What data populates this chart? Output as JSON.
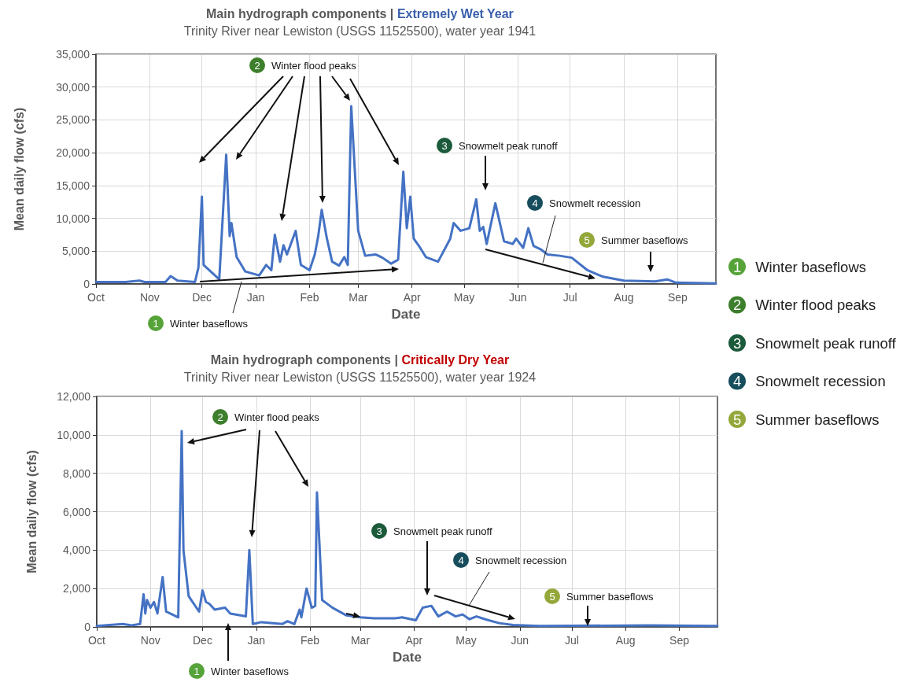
{
  "chart_data": [
    {
      "type": "line",
      "title": "Main hydrograph components | Extremely Wet Year",
      "subtitle": "Trinity River near Lewiston (USGS 11525500), water year 1941",
      "xlabel": "Date",
      "ylabel": "Mean daily flow (cfs)",
      "x": [
        "1940-10-01",
        "1940-10-18",
        "1940-10-26",
        "1940-10-29",
        "1940-11-10",
        "1940-11-13",
        "1940-11-17",
        "1940-11-27",
        "1940-11-29",
        "1940-12-01",
        "1940-12-02",
        "1940-12-11",
        "1940-12-15",
        "1940-12-17",
        "1940-12-18",
        "1940-12-21",
        "1940-12-26",
        "1941-01-03",
        "1941-01-07",
        "1941-01-10",
        "1941-01-12",
        "1941-01-15",
        "1941-01-17",
        "1941-01-19",
        "1941-01-24",
        "1941-01-27",
        "1941-02-01",
        "1941-02-04",
        "1941-02-06",
        "1941-02-08",
        "1941-02-11",
        "1941-02-14",
        "1941-02-18",
        "1941-02-21",
        "1941-02-23",
        "1941-02-25",
        "1941-03-01",
        "1941-03-05",
        "1941-03-11",
        "1941-03-15",
        "1941-03-20",
        "1941-03-24",
        "1941-03-27",
        "1941-03-29",
        "1941-03-31",
        "1941-04-02",
        "1941-04-05",
        "1941-04-09",
        "1941-04-16",
        "1941-04-23",
        "1941-04-25",
        "1941-04-29",
        "1941-05-04",
        "1941-05-08",
        "1941-05-10",
        "1941-05-12",
        "1941-05-14",
        "1941-05-19",
        "1941-05-24",
        "1941-05-29",
        "1941-05-31",
        "1941-06-04",
        "1941-06-07",
        "1941-06-10",
        "1941-06-14",
        "1941-06-18",
        "1941-06-25",
        "1941-07-02",
        "1941-07-11",
        "1941-07-20",
        "1941-08-01",
        "1941-08-19",
        "1941-08-26",
        "1941-08-31",
        "1941-09-23"
      ],
      "values": [
        300,
        300,
        500,
        300,
        300,
        1200,
        500,
        300,
        2500,
        13300,
        2900,
        700,
        19700,
        7300,
        9300,
        4100,
        1900,
        1300,
        2900,
        2100,
        7500,
        3400,
        5900,
        4500,
        8100,
        2900,
        2100,
        4500,
        7300,
        11300,
        6900,
        3400,
        2800,
        4100,
        2900,
        27100,
        8100,
        4300,
        4500,
        4000,
        3100,
        3700,
        17100,
        8500,
        13300,
        6900,
        5800,
        4100,
        3400,
        6900,
        9300,
        8100,
        8500,
        12900,
        8100,
        8700,
        6100,
        12300,
        6500,
        6100,
        6900,
        5500,
        8500,
        5800,
        5300,
        4500,
        4300,
        4000,
        2100,
        1100,
        500,
        400,
        700,
        200,
        100
      ],
      "color": "#4472c4",
      "xlim": [
        "1940-10-01",
        "1941-09-23"
      ],
      "xticks": [
        {
          "value": "1940-10-01",
          "label": "Oct"
        },
        {
          "value": "1940-11-01",
          "label": "Nov"
        },
        {
          "value": "1940-12-01",
          "label": "Dec"
        },
        {
          "value": "1941-01-01",
          "label": "Jan"
        },
        {
          "value": "1941-02-01",
          "label": "Feb"
        },
        {
          "value": "1941-03-01",
          "label": "Mar"
        },
        {
          "value": "1941-04-01",
          "label": "Apr"
        },
        {
          "value": "1941-05-01",
          "label": "May"
        },
        {
          "value": "1941-06-01",
          "label": "Jun"
        },
        {
          "value": "1941-07-01",
          "label": "Jul"
        },
        {
          "value": "1941-08-01",
          "label": "Aug"
        },
        {
          "value": "1941-09-01",
          "label": "Sep"
        }
      ],
      "ylim": [
        0,
        35000
      ],
      "yticks": [
        0,
        {
          "value": 5000,
          "label": "5,000"
        },
        {
          "value": 10000,
          "label": "10,000"
        },
        {
          "value": 15000,
          "label": "15,000"
        },
        {
          "value": 20000,
          "label": "20,000"
        },
        {
          "value": 25000,
          "label": "25,000"
        },
        {
          "value": 30000,
          "label": "30,000"
        },
        {
          "value": 35000,
          "label": "35,000"
        }
      ],
      "grid": true,
      "marker": "none",
      "line_style": "solid",
      "annotations": [
        "1",
        "Winter baseflows",
        "2",
        "Winter flood peaks",
        "3",
        "Snowmelt peak runoff",
        "4",
        "Snowmelt recession",
        "5",
        "Summer baseflows"
      ]
    },
    {
      "type": "line",
      "title": "Main hydrograph components | Critically Dry Year",
      "subtitle": "Trinity River near Lewiston (USGS 11525500), water year 1924",
      "xlabel": "Date",
      "ylabel": "Mean daily flow (cfs)",
      "x": [
        "1923-10-01",
        "1923-10-16",
        "1923-10-21",
        "1923-10-26",
        "1923-10-28",
        "1923-10-29",
        "1923-10-30",
        "1923-11-01",
        "1923-11-03",
        "1923-11-05",
        "1923-11-08",
        "1923-11-10",
        "1923-11-17",
        "1923-11-19",
        "1923-11-20",
        "1923-11-23",
        "1923-11-29",
        "1923-12-01",
        "1923-12-03",
        "1923-12-05",
        "1923-12-08",
        "1923-12-14",
        "1923-12-17",
        "1923-12-26",
        "1923-12-28",
        "1923-12-30",
        "1924-01-04",
        "1924-01-16",
        "1924-01-19",
        "1924-01-23",
        "1924-01-26",
        "1924-01-27",
        "1924-01-30",
        "1924-02-02",
        "1924-02-04",
        "1924-02-05",
        "1924-02-08",
        "1924-02-14",
        "1924-02-22",
        "1924-03-01",
        "1924-03-09",
        "1924-03-21",
        "1924-03-25",
        "1924-04-02",
        "1924-04-06",
        "1924-04-11",
        "1924-04-15",
        "1924-04-20",
        "1924-04-25",
        "1924-04-29",
        "1924-05-03",
        "1924-05-07",
        "1924-05-12",
        "1924-05-20",
        "1924-05-28",
        "1924-06-12",
        "1924-08-15",
        "1924-09-23"
      ],
      "values": [
        50,
        150,
        80,
        150,
        1700,
        700,
        1400,
        1000,
        1300,
        700,
        2600,
        800,
        500,
        10200,
        4000,
        1600,
        800,
        1900,
        1300,
        1200,
        900,
        1000,
        700,
        550,
        4000,
        150,
        250,
        150,
        300,
        150,
        900,
        500,
        2000,
        1000,
        1100,
        7000,
        1400,
        1000,
        600,
        500,
        450,
        450,
        500,
        350,
        1000,
        1100,
        550,
        800,
        550,
        650,
        400,
        550,
        400,
        200,
        100,
        50,
        80,
        50
      ],
      "color": "#4472c4",
      "xlim": [
        "1923-10-01",
        "1924-09-23"
      ],
      "xticks": [
        {
          "value": "1923-10-01",
          "label": "Oct"
        },
        {
          "value": "1923-11-01",
          "label": "Nov"
        },
        {
          "value": "1923-12-01",
          "label": "Dec"
        },
        {
          "value": "1924-01-01",
          "label": "Jan"
        },
        {
          "value": "1924-02-01",
          "label": "Feb"
        },
        {
          "value": "1924-03-01",
          "label": "Mar"
        },
        {
          "value": "1924-04-01",
          "label": "Apr"
        },
        {
          "value": "1924-05-01",
          "label": "May"
        },
        {
          "value": "1924-06-01",
          "label": "Jun"
        },
        {
          "value": "1924-07-01",
          "label": "Jul"
        },
        {
          "value": "1924-08-01",
          "label": "Aug"
        },
        {
          "value": "1924-09-01",
          "label": "Sep"
        }
      ],
      "ylim": [
        0,
        12000
      ],
      "yticks": [
        0,
        {
          "value": 2000,
          "label": "2,000"
        },
        {
          "value": 4000,
          "label": "4,000"
        },
        {
          "value": 6000,
          "label": "6,000"
        },
        {
          "value": 8000,
          "label": "8,000"
        },
        {
          "value": 10000,
          "label": "10,000"
        },
        {
          "value": 12000,
          "label": "12,000"
        }
      ],
      "grid": true,
      "marker": "none",
      "line_style": "solid",
      "annotations": [
        "1",
        "Winter baseflows",
        "2",
        "Winter flood peaks",
        "3",
        "Snowmelt peak runoff",
        "4",
        "Snowmelt recession",
        "5",
        "Summer baseflows"
      ]
    },
    {
      "type": "other",
      "annotations": [
        "1 Winter baseflows",
        "2 Winter flood peaks",
        "3 Snowmelt peak runoff",
        "4 Snowmelt recession",
        "5 Summer baseflows"
      ]
    }
  ]
}
